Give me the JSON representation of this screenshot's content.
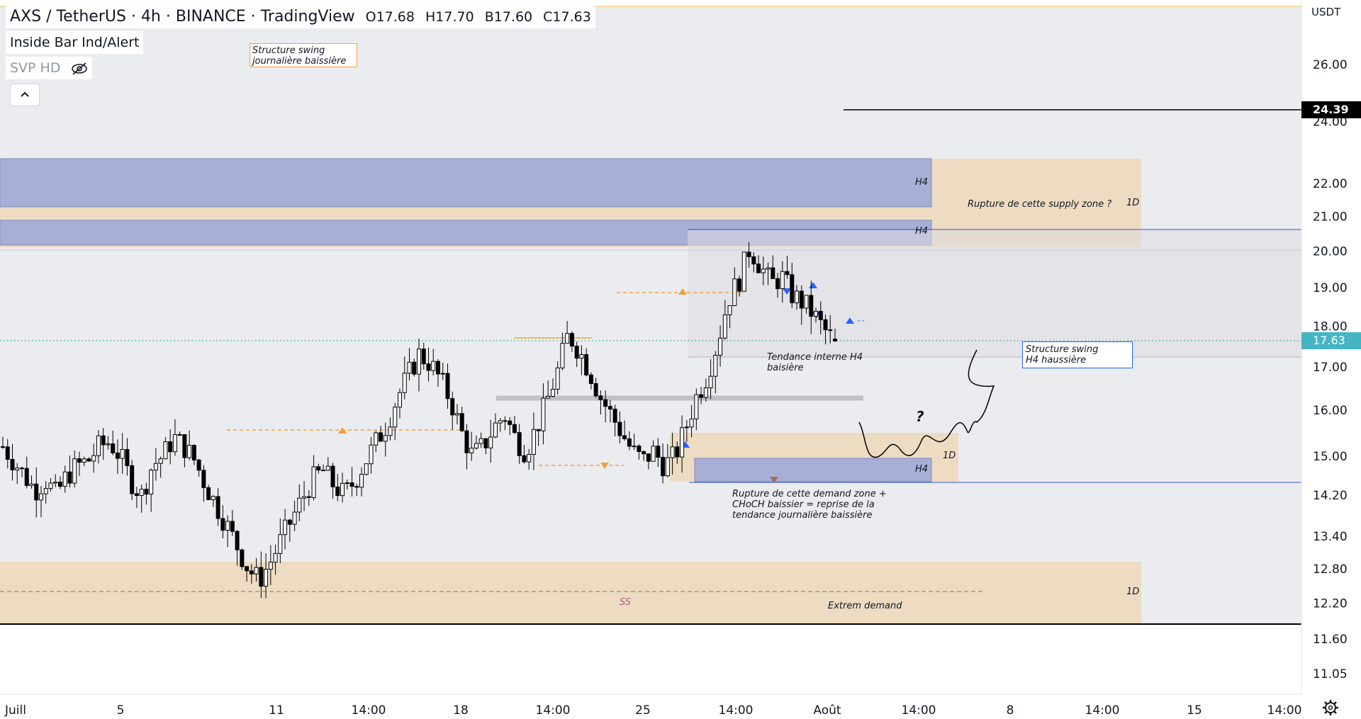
{
  "header": {
    "symbol": "AXS / TetherUS",
    "interval": "4h",
    "exchange": "BINANCE",
    "platform": "TradingView",
    "open": "O17.68",
    "high": "H17.70",
    "low": "B17.60",
    "close": "C17.63"
  },
  "indicators": {
    "inside_bar": "Inside Bar Ind/Alert",
    "svp": "SVP HD",
    "svp_icon": "eye-off-icon",
    "collapse_icon": "chevron-up-icon"
  },
  "price_axis": {
    "currency": "USDT",
    "labels": [
      "26.00",
      "24.00",
      "22.00",
      "21.00",
      "20.00",
      "19.00",
      "18.00",
      "17.00",
      "16.00",
      "15.00",
      "14.20",
      "13.40",
      "12.80",
      "12.20",
      "11.60",
      "11.05"
    ],
    "current_price": "17.63",
    "current_price_color": "#26a69a",
    "level_price": "24.39"
  },
  "time_axis": {
    "labels": [
      "Juill",
      "5",
      "11",
      "14:00",
      "18",
      "14:00",
      "25",
      "14:00",
      "Août",
      "14:00",
      "8",
      "14:00",
      "15",
      "14:00"
    ]
  },
  "chart_data": {
    "type": "candlestick",
    "symbol": "AXS / TetherUS",
    "interval": "4h",
    "scale": "log",
    "y_range": [
      10.8,
      27.5
    ],
    "x_range": [
      "Juill",
      "15 (Août)"
    ],
    "last": {
      "open": 17.68,
      "high": 17.7,
      "low": 17.6,
      "close": 17.63
    },
    "close_path": [
      15.2,
      14.9,
      14.6,
      14.3,
      14.5,
      14.2,
      14.6,
      14.8,
      14.9,
      15.2,
      15.3,
      15.0,
      14.5,
      14.2,
      14.8,
      15.0,
      15.4,
      15.2,
      14.9,
      14.4,
      14.0,
      13.6,
      13.2,
      12.8,
      12.6,
      12.9,
      13.3,
      13.7,
      14.1,
      14.5,
      14.7,
      14.4,
      14.2,
      14.5,
      14.9,
      15.3,
      15.7,
      16.3,
      16.8,
      17.3,
      17.1,
      16.7,
      16.2,
      15.5,
      15.0,
      15.2,
      15.6,
      15.9,
      15.4,
      15.1,
      15.6,
      16.2,
      16.9,
      17.8,
      17.4,
      16.9,
      16.3,
      15.9,
      15.5,
      15.1,
      14.9,
      15.1,
      14.8,
      15.0,
      15.6,
      16.3,
      16.8,
      17.6,
      18.7,
      19.2,
      20.1,
      19.6,
      19.1,
      19.3,
      18.8,
      18.6,
      18.3,
      17.9,
      17.63
    ],
    "zones": [
      {
        "label": "H4",
        "type": "supply",
        "range": [
          21.3,
          22.6
        ]
      },
      {
        "label": "1D",
        "type": "supply",
        "range": [
          20.1,
          22.6
        ]
      },
      {
        "label": "H4",
        "type": "supply",
        "range": [
          20.2,
          20.9
        ]
      },
      {
        "label": "1D",
        "type": "demand",
        "range": [
          14.7,
          15.5
        ]
      },
      {
        "label": "H4",
        "type": "demand",
        "range": [
          14.6,
          15.0
        ]
      },
      {
        "label": "1D",
        "type": "demand",
        "range": [
          11.7,
          12.95
        ]
      }
    ],
    "levels": [
      24.39,
      20.65,
      14.45
    ]
  },
  "annotations": {
    "swing_daily": [
      "Structure swing",
      "journalière baissière"
    ],
    "supply_break": "Rupture de cette supply zone ?",
    "internal_trend": [
      "Tendance interne H4",
      "baisière"
    ],
    "swing_h4": [
      "Structure swing",
      "H4 haussière"
    ],
    "demand_break": [
      "Rupture de cette demand zone +",
      "CHoCH baissier = reprise de la",
      "tendance journalière baissière"
    ],
    "extreme_demand": "Extrem demand",
    "ss": "SS",
    "question": "?",
    "h4": "H4",
    "d1": "1D"
  },
  "colors": {
    "supply_zone": "#a8afd6",
    "daily_zone": "#eddcc2",
    "bull": "#ffffff",
    "bear": "#000000",
    "teal": "#26a69a",
    "orange": "#f0a040",
    "blue_line": "#3355cc",
    "triangle_blue": "#2962ff",
    "ss_color": "#b06080"
  }
}
